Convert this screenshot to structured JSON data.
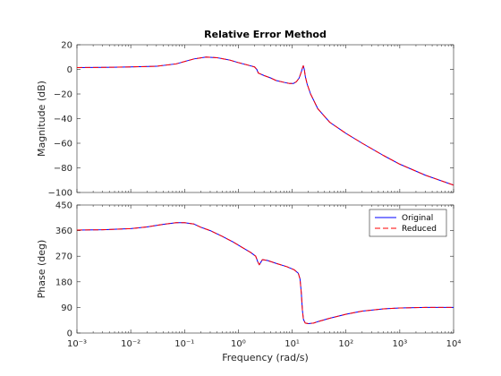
{
  "chart_data": [
    {
      "type": "line",
      "title": "Relative Error Method",
      "xlabel": "",
      "ylabel": "Magnitude (dB)",
      "xscale": "log",
      "xlim": [
        0.001,
        10000
      ],
      "ylim": [
        -100,
        20
      ],
      "yticks": [
        -100,
        -80,
        -60,
        -40,
        -20,
        0,
        20
      ],
      "grid": false,
      "series": [
        {
          "name": "Original",
          "color": "#0000ff",
          "style": "solid",
          "x": [
            0.001,
            0.003,
            0.01,
            0.03,
            0.07,
            0.15,
            0.25,
            0.4,
            0.7,
            1.0,
            1.5,
            2.0,
            2.2,
            2.35,
            2.5,
            3,
            4,
            5,
            7,
            9,
            10.5,
            12,
            13.5,
            14.8,
            15.5,
            16.1,
            16.8,
            17.6,
            19,
            22,
            30,
            50,
            100,
            200,
            500,
            1000,
            3000,
            10000
          ],
          "y": [
            1.5,
            1.6,
            2,
            2.5,
            4.5,
            8.5,
            10,
            9.5,
            7.5,
            5.5,
            3.5,
            2,
            0,
            -3,
            -3.5,
            -5,
            -7,
            -9,
            -10.5,
            -11.5,
            -11.5,
            -10,
            -7,
            -2,
            1,
            3,
            0,
            -6,
            -12,
            -20,
            -32,
            -43,
            -52,
            -60,
            -70,
            -77,
            -86,
            -94
          ]
        },
        {
          "name": "Reduced",
          "color": "#ff0000",
          "style": "dashed",
          "x": [
            0.001,
            0.003,
            0.01,
            0.03,
            0.07,
            0.15,
            0.25,
            0.4,
            0.7,
            1.0,
            1.5,
            2.0,
            2.2,
            2.35,
            2.5,
            3,
            4,
            5,
            7,
            9,
            10.5,
            12,
            13.5,
            14.8,
            15.5,
            16.1,
            16.8,
            17.6,
            19,
            22,
            30,
            50,
            100,
            200,
            500,
            1000,
            3000,
            10000
          ],
          "y": [
            1.5,
            1.6,
            2,
            2.5,
            4.5,
            8.5,
            10,
            9.5,
            7.5,
            5.5,
            3.5,
            2,
            0,
            -3,
            -3.5,
            -5,
            -7,
            -9,
            -10.5,
            -11.5,
            -11.5,
            -10,
            -7,
            -2,
            1,
            3,
            0,
            -6,
            -12,
            -20,
            -32,
            -43,
            -52,
            -60,
            -70,
            -77,
            -86,
            -94
          ]
        }
      ]
    },
    {
      "type": "line",
      "title": "",
      "xlabel": "Frequency  (rad/s)",
      "ylabel": "Phase (deg)",
      "xscale": "log",
      "xlim": [
        0.001,
        10000
      ],
      "ylim": [
        0,
        450
      ],
      "yticks": [
        0,
        90,
        180,
        270,
        360,
        450
      ],
      "grid": false,
      "legend": "top-right",
      "series": [
        {
          "name": "Original",
          "color": "#0000ff",
          "style": "solid",
          "x": [
            0.001,
            0.003,
            0.01,
            0.02,
            0.04,
            0.07,
            0.1,
            0.15,
            0.2,
            0.3,
            0.5,
            0.8,
            1.2,
            1.7,
            2.1,
            2.3,
            2.45,
            2.6,
            2.8,
            3.5,
            5,
            8,
            11,
            13,
            14,
            14.8,
            15.5,
            16.2,
            17.5,
            20,
            25,
            30,
            50,
            100,
            200,
            500,
            1000,
            3000,
            10000
          ],
          "y": [
            362,
            363,
            367,
            373,
            382,
            388,
            388,
            383,
            372,
            360,
            340,
            320,
            300,
            283,
            270,
            250,
            240,
            248,
            258,
            255,
            245,
            233,
            222,
            210,
            190,
            140,
            80,
            48,
            35,
            33,
            35,
            40,
            52,
            66,
            77,
            85,
            88,
            90,
            90
          ]
        },
        {
          "name": "Reduced",
          "color": "#ff0000",
          "style": "dashed",
          "x": [
            0.001,
            0.003,
            0.01,
            0.02,
            0.04,
            0.07,
            0.1,
            0.15,
            0.2,
            0.3,
            0.5,
            0.8,
            1.2,
            1.7,
            2.1,
            2.3,
            2.45,
            2.6,
            2.8,
            3.5,
            5,
            8,
            11,
            13,
            14,
            14.8,
            15.5,
            16.2,
            17.5,
            20,
            25,
            30,
            50,
            100,
            200,
            500,
            1000,
            3000,
            10000
          ],
          "y": [
            362,
            363,
            367,
            373,
            382,
            388,
            388,
            383,
            372,
            360,
            340,
            320,
            300,
            283,
            270,
            250,
            240,
            248,
            258,
            255,
            245,
            233,
            222,
            210,
            190,
            140,
            80,
            48,
            35,
            33,
            35,
            40,
            52,
            66,
            77,
            85,
            88,
            90,
            90
          ]
        }
      ]
    }
  ]
}
